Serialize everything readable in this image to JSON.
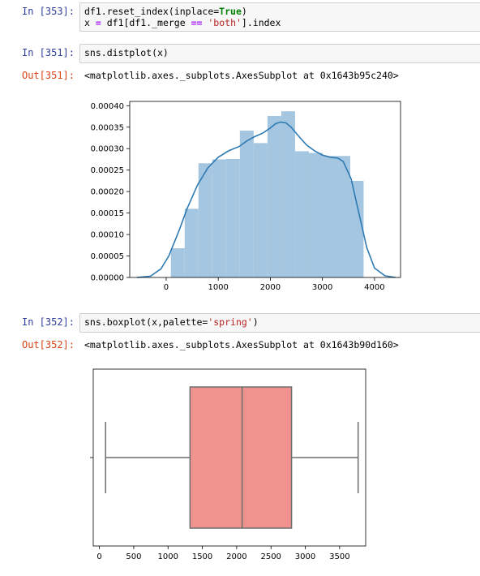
{
  "cells": {
    "c353": {
      "prompt": "In [353]:",
      "line1_a": "df1.reset_index(inplace=",
      "line1_kw": "True",
      "line1_b": ")",
      "line2_a": "x ",
      "line2_op1": "=",
      "line2_b": " df1[df1._merge ",
      "line2_op2": "==",
      "line2_c": " ",
      "line2_str": "'both'",
      "line2_d": "].index"
    },
    "c351": {
      "prompt": "In [351]:",
      "code": "sns.distplot(x)",
      "out_prompt": "Out[351]:",
      "output": "<matplotlib.axes._subplots.AxesSubplot at 0x1643b95c240>"
    },
    "c352": {
      "prompt": "In [352]:",
      "code_a": "sns.boxplot(x,palette=",
      "code_str": "'spring'",
      "code_b": ")",
      "out_prompt": "Out[352]:",
      "output": "<matplotlib.axes._subplots.AxesSubplot at 0x1643b90d160>"
    }
  },
  "chart_data": [
    {
      "type": "histogram",
      "bar_color": "#a5c6e0",
      "line_color": "#2e7bb4",
      "xlim": [
        -700,
        4500
      ],
      "ylim": [
        0,
        0.00041
      ],
      "xticks": [
        0,
        1000,
        2000,
        3000,
        4000
      ],
      "xtick_labels": [
        "0",
        "1000",
        "2000",
        "3000",
        "4000"
      ],
      "yticks": [
        0,
        5e-05,
        0.0001,
        0.00015,
        0.0002,
        0.00025,
        0.0003,
        0.00035,
        0.0004
      ],
      "ytick_labels": [
        "0.00000",
        "0.00005",
        "0.00010",
        "0.00015",
        "0.00020",
        "0.00025",
        "0.00030",
        "0.00035",
        "0.00040"
      ],
      "bin_edges": [
        90,
        355,
        620,
        885,
        1150,
        1415,
        1680,
        1945,
        2210,
        2475,
        2740,
        3005,
        3270,
        3535,
        3790
      ],
      "bin_heights": [
        6.8e-05,
        0.00016,
        0.000266,
        0.000275,
        0.000276,
        0.000342,
        0.000313,
        0.000376,
        0.000387,
        0.000294,
        0.00029,
        0.000283,
        0.000283,
        0.000225
      ],
      "kde": [
        [
          -560,
          0.0
        ],
        [
          -300,
          3e-06
        ],
        [
          -100,
          2e-05
        ],
        [
          50,
          5e-05
        ],
        [
          150,
          8e-05
        ],
        [
          250,
          0.00011
        ],
        [
          400,
          0.00016
        ],
        [
          600,
          0.000215
        ],
        [
          800,
          0.000255
        ],
        [
          1000,
          0.00028
        ],
        [
          1200,
          0.000295
        ],
        [
          1400,
          0.000305
        ],
        [
          1550,
          0.000318
        ],
        [
          1700,
          0.000328
        ],
        [
          1850,
          0.000336
        ],
        [
          2000,
          0.000348
        ],
        [
          2100,
          0.000358
        ],
        [
          2200,
          0.000362
        ],
        [
          2300,
          0.00036
        ],
        [
          2400,
          0.00035
        ],
        [
          2550,
          0.000328
        ],
        [
          2700,
          0.000308
        ],
        [
          2850,
          0.000295
        ],
        [
          3000,
          0.000285
        ],
        [
          3150,
          0.00028
        ],
        [
          3300,
          0.000278
        ],
        [
          3400,
          0.00027
        ],
        [
          3550,
          0.00023
        ],
        [
          3700,
          0.00015
        ],
        [
          3850,
          7e-05
        ],
        [
          4000,
          2.2e-05
        ],
        [
          4200,
          4e-06
        ],
        [
          4400,
          0.0
        ]
      ]
    },
    {
      "type": "boxplot",
      "box_color": "#f0928d",
      "xlim": [
        -90,
        3880
      ],
      "xticks": [
        0,
        500,
        1000,
        1500,
        2000,
        2500,
        3000,
        3500
      ],
      "xtick_labels": [
        "0",
        "500",
        "1000",
        "1500",
        "2000",
        "2500",
        "3000",
        "3500"
      ],
      "whisker_low": 90,
      "q1": 1320,
      "median": 2080,
      "q3": 2800,
      "whisker_high": 3770
    }
  ]
}
